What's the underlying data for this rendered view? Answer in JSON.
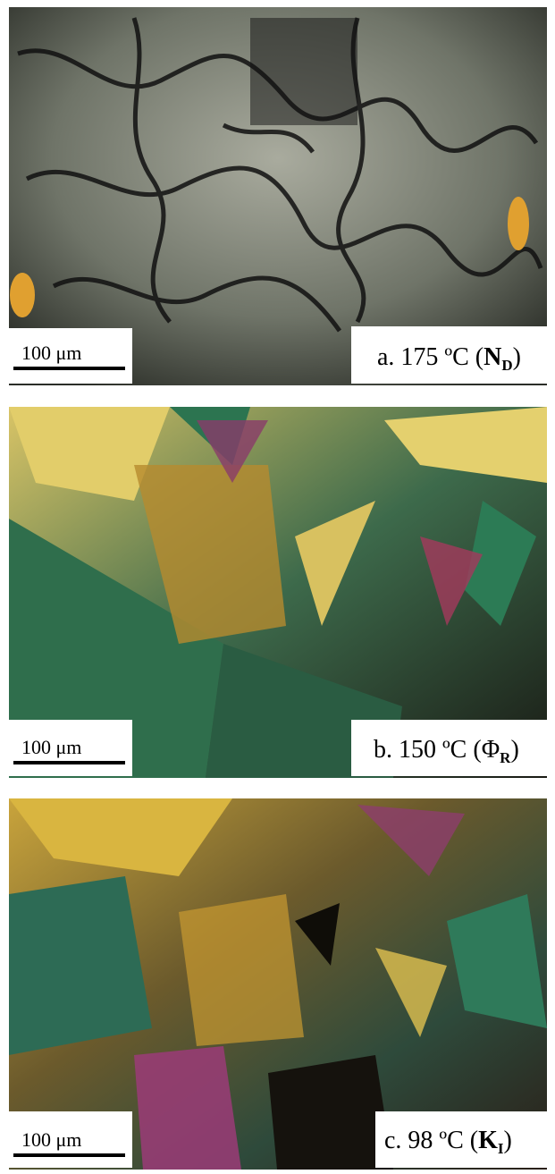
{
  "panels": [
    {
      "scale_bar": "100 μm",
      "label": {
        "text": "a. 175 ºC (",
        "symbol": "N",
        "subscript": "D",
        "close": ")"
      }
    },
    {
      "scale_bar": "100 μm",
      "label": {
        "text": "b. 150 ºC (",
        "symbol": "Φ",
        "subscript": "R",
        "close": ")"
      }
    },
    {
      "scale_bar": "100 μm",
      "label": {
        "text": "c. 98 ºC (",
        "symbol": "K",
        "subscript": "I",
        "close": ")"
      }
    }
  ]
}
